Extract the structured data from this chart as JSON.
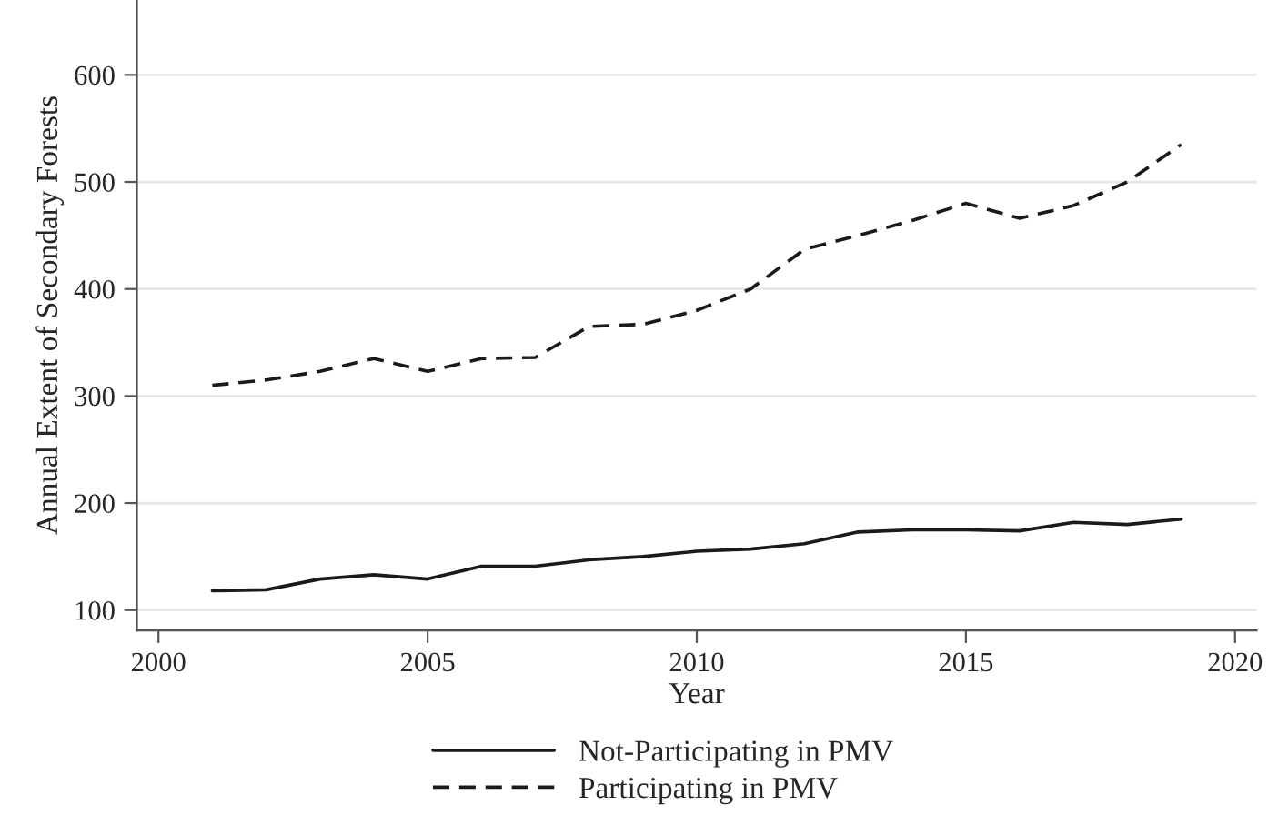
{
  "chart_data": {
    "type": "line",
    "xlabel": "Year",
    "ylabel": "Annual Extent of Secondary Forests",
    "x": [
      2001,
      2002,
      2003,
      2004,
      2005,
      2006,
      2007,
      2008,
      2009,
      2010,
      2011,
      2012,
      2013,
      2014,
      2015,
      2016,
      2017,
      2018,
      2019
    ],
    "series": [
      {
        "name": "Not-Participating in PMV",
        "color": "#1a1a1a",
        "line_style": "solid",
        "values": [
          118,
          119,
          129,
          133,
          129,
          141,
          141,
          147,
          150,
          155,
          157,
          162,
          173,
          175,
          175,
          174,
          182,
          180,
          185
        ]
      },
      {
        "name": "Participating in PMV",
        "color": "#1a1a1a",
        "line_style": "dashed",
        "values": [
          310,
          315,
          323,
          335,
          323,
          335,
          336,
          365,
          367,
          380,
          400,
          437,
          450,
          464,
          480,
          466,
          478,
          500,
          535
        ]
      }
    ],
    "xlim": [
      1999.6,
      2020.4
    ],
    "xticks": [
      2000,
      2005,
      2010,
      2015,
      2020
    ],
    "ylim": [
      81,
      670
    ],
    "yticks": [
      100,
      200,
      300,
      400,
      500,
      600
    ],
    "grid": "y",
    "legend": "bottom",
    "marker": "none"
  }
}
